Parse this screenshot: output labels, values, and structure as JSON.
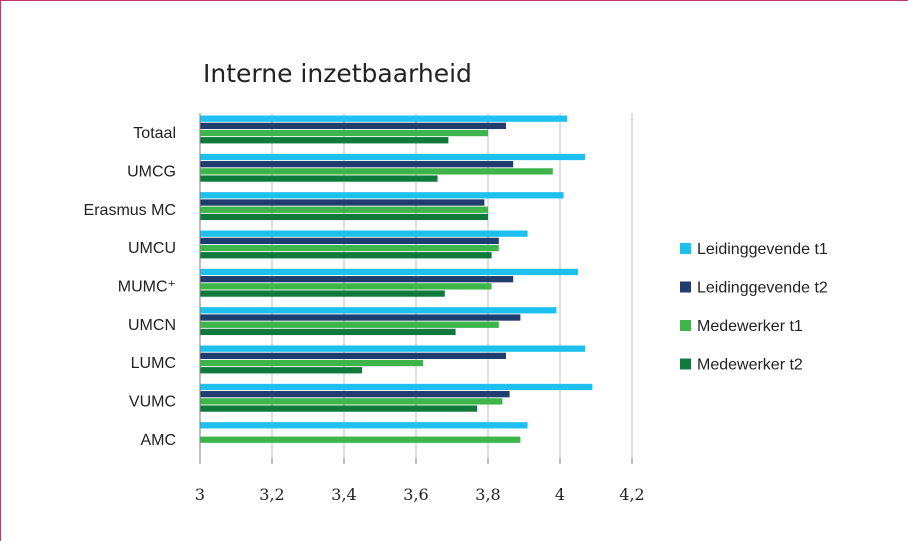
{
  "chart_data": {
    "type": "bar",
    "orientation": "horizontal",
    "title": "Interne inzetbaarheid",
    "xlabel": "",
    "ylabel": "",
    "xlim": [
      3,
      4.2
    ],
    "ticks": [
      3,
      3.2,
      3.4,
      3.6,
      3.8,
      4,
      4.2
    ],
    "tick_labels": [
      "3",
      "3,2",
      "3,4",
      "3,6",
      "3,8",
      "4",
      "4,2"
    ],
    "grid": true,
    "legend_position": "right",
    "categories": [
      "Totaal",
      "UMCG",
      "Erasmus MC",
      "UMCU",
      "MUMC⁺",
      "UMCN",
      "LUMC",
      "VUMC",
      "AMC"
    ],
    "series": [
      {
        "name": "Leidinggevende t1",
        "color": "#1ec0f0",
        "values": [
          4.02,
          4.07,
          4.01,
          3.91,
          4.05,
          3.99,
          4.07,
          4.09,
          3.91
        ]
      },
      {
        "name": "Leidinggevende t2",
        "color": "#1f3d6e",
        "values": [
          3.85,
          3.87,
          3.79,
          3.83,
          3.87,
          3.89,
          3.85,
          3.86,
          null
        ]
      },
      {
        "name": "Medewerker t1",
        "color": "#3db54a",
        "values": [
          3.8,
          3.98,
          3.8,
          3.83,
          3.81,
          3.83,
          3.62,
          3.84,
          3.89
        ]
      },
      {
        "name": "Medewerker t2",
        "color": "#0f7a3c",
        "values": [
          3.69,
          3.66,
          3.8,
          3.81,
          3.68,
          3.71,
          3.45,
          3.77,
          null
        ]
      }
    ]
  }
}
